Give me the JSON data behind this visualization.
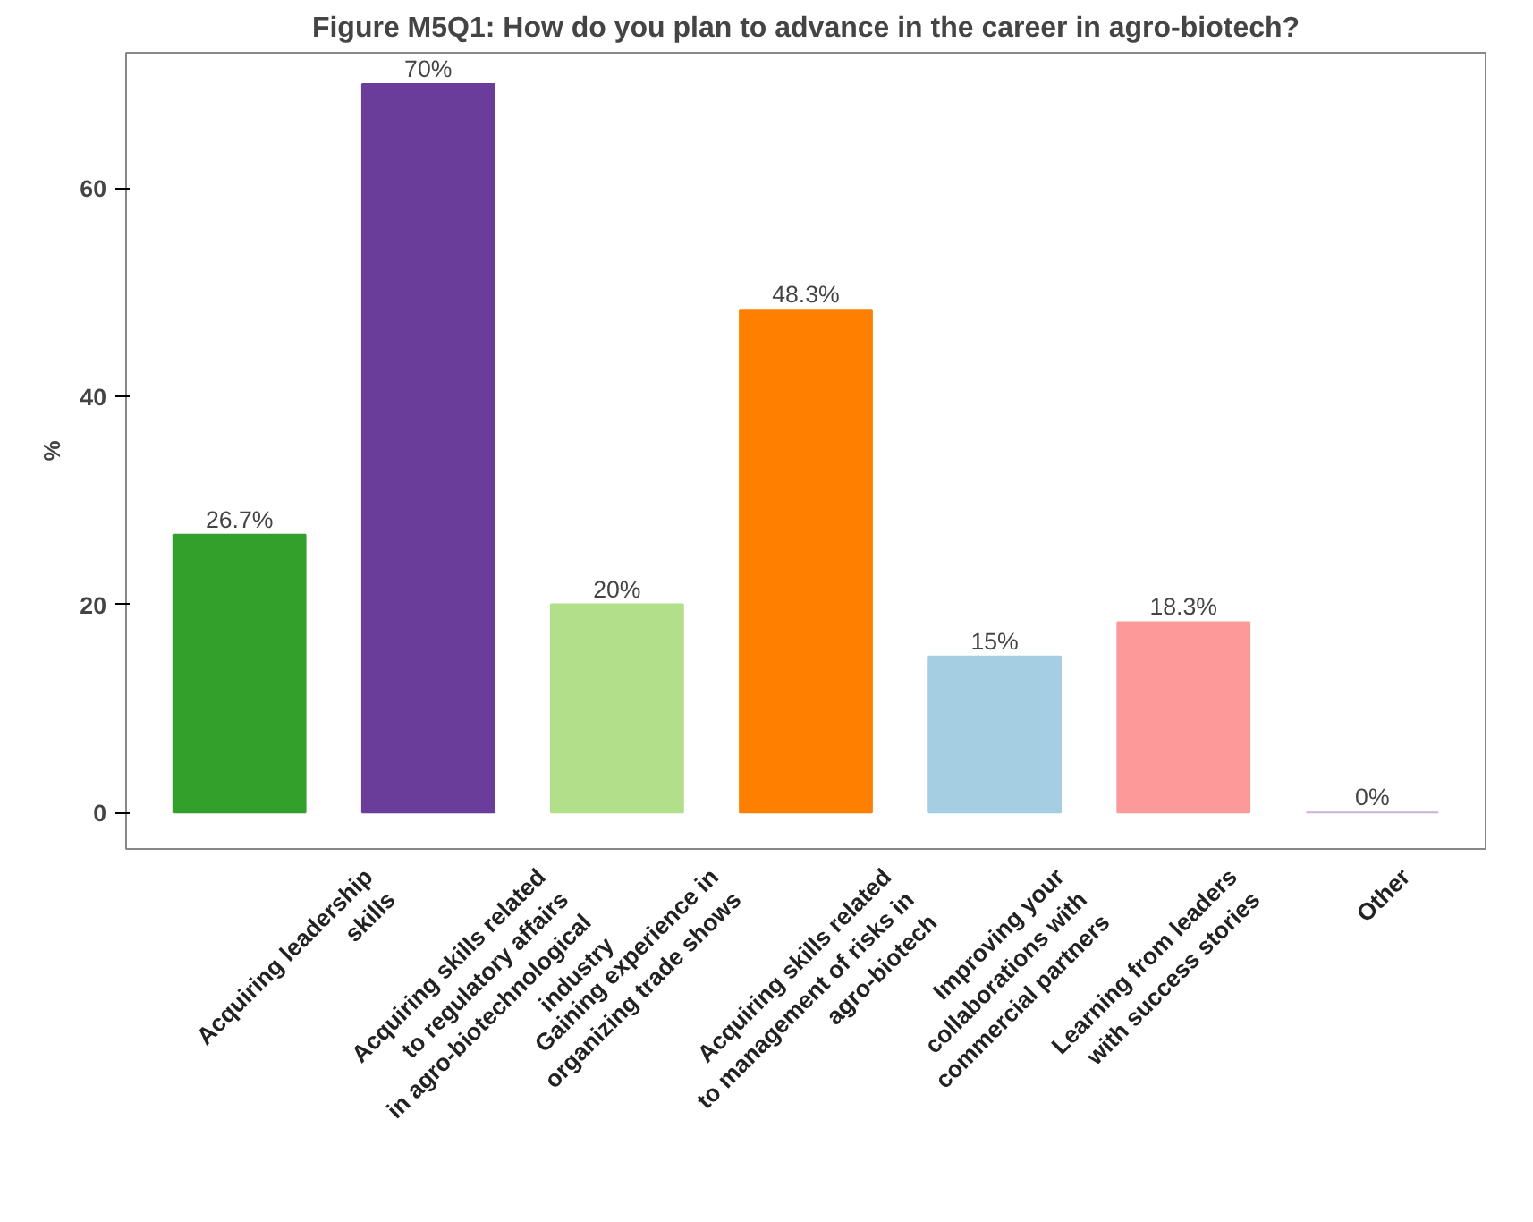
{
  "chart_data": {
    "type": "bar",
    "title": "Figure M5Q1: How do you plan to advance in the career in agro-biotech?",
    "ylabel": "%",
    "categories": [
      "Acquiring leadership\nskills",
      "Acquiring skills related\nto regulatory affairs\nin agro-biotechnological\nindustry",
      "Gaining experience in\norganizing trade shows",
      "Acquiring skills related\nto management of risks in\nagro-biotech",
      "Improving your\ncollaborations with\ncommercial partners",
      "Learning from leaders\nwith success stories",
      "Other"
    ],
    "values": [
      26.7,
      70,
      20,
      48.3,
      15,
      18.3,
      0
    ],
    "colors": [
      "#33a02c",
      "#6a3d9a",
      "#b2df8a",
      "#ff7f00",
      "#a6cee3",
      "#fb9a99",
      "#cab2d6"
    ],
    "value_labels": [
      "26.7%",
      "70%",
      "20%",
      "48.3%",
      "15%",
      "18.3%",
      "0%"
    ],
    "ylim": [
      -3.5,
      73
    ],
    "yticks": [
      0,
      20,
      40,
      60
    ],
    "grid": false
  }
}
